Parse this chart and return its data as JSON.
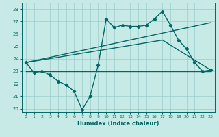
{
  "xlabel": "Humidex (Indice chaleur)",
  "bg_color": "#c8eae6",
  "grid_color": "#99cccc",
  "line_color": "#006666",
  "xlim": [
    -0.5,
    23.5
  ],
  "ylim": [
    19.7,
    28.5
  ],
  "xticks": [
    0,
    1,
    2,
    3,
    4,
    5,
    6,
    7,
    8,
    9,
    10,
    11,
    12,
    13,
    14,
    15,
    16,
    17,
    18,
    19,
    20,
    21,
    22,
    23
  ],
  "yticks": [
    20,
    21,
    22,
    23,
    24,
    25,
    26,
    27,
    28
  ],
  "line_main": {
    "x": [
      0,
      1,
      2,
      3,
      4,
      5,
      6,
      7,
      8,
      9,
      10,
      11,
      12,
      13,
      14,
      15,
      16,
      17,
      18,
      19,
      20,
      21,
      22,
      23
    ],
    "y": [
      23.7,
      22.9,
      23.0,
      22.7,
      22.2,
      21.9,
      21.4,
      19.9,
      21.0,
      23.5,
      27.2,
      26.5,
      26.7,
      26.6,
      26.6,
      26.7,
      27.2,
      27.8,
      26.7,
      25.5,
      24.8,
      23.7,
      23.0,
      23.1
    ]
  },
  "line_upper": {
    "x": [
      0,
      23
    ],
    "y": [
      23.7,
      26.9
    ]
  },
  "line_mid": {
    "x": [
      0,
      17,
      23
    ],
    "y": [
      23.7,
      25.5,
      23.1
    ]
  },
  "line_lower": {
    "x": [
      0,
      15,
      23
    ],
    "y": [
      23.0,
      23.0,
      23.0
    ]
  }
}
